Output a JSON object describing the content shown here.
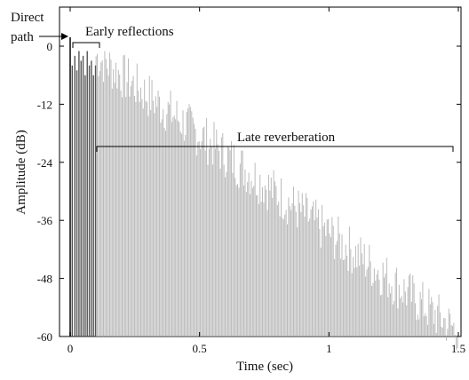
{
  "chart_data": {
    "type": "bar",
    "title": "",
    "xlabel": "Time (sec)",
    "ylabel": "Amplitude (dB)",
    "xlim": [
      0,
      1.5
    ],
    "ylim": [
      -60,
      3
    ],
    "xticks": [
      0,
      0.5,
      1,
      1.5
    ],
    "xtick_labels": [
      "0",
      "0.5",
      "1",
      "1.5"
    ],
    "yticks": [
      0,
      -12,
      -24,
      -36,
      -48,
      -60
    ],
    "ytick_labels": [
      "0",
      "-12",
      "-24",
      "-36",
      "-48",
      "-60"
    ],
    "grid": false,
    "series": [
      {
        "name": "Direct path",
        "color": "#444444",
        "x": [
          0.0
        ],
        "values": [
          0
        ]
      },
      {
        "name": "Early reflections",
        "color": "#555555",
        "x": [
          0.008,
          0.018,
          0.026,
          0.034,
          0.042,
          0.05,
          0.058,
          0.066,
          0.074,
          0.082,
          0.09,
          0.098
        ],
        "values": [
          -4,
          -2,
          -5,
          -1,
          -3,
          -2,
          -6,
          -1,
          -4,
          -3,
          -6,
          -4
        ]
      },
      {
        "name": "Late reverberation",
        "color": "#bbbbbb",
        "decay": {
          "x_start": 0.1,
          "x_end": 1.5,
          "level_start_db": -3,
          "level_end_db": -60
        }
      }
    ],
    "annotations": [
      {
        "text": "Direct",
        "target": "direct-path"
      },
      {
        "text": "path",
        "target": "direct-path"
      },
      {
        "text": "Early reflections",
        "range": [
          0.0,
          0.1
        ]
      },
      {
        "text": "Late reverberation",
        "range": [
          0.1,
          1.47
        ]
      }
    ]
  }
}
